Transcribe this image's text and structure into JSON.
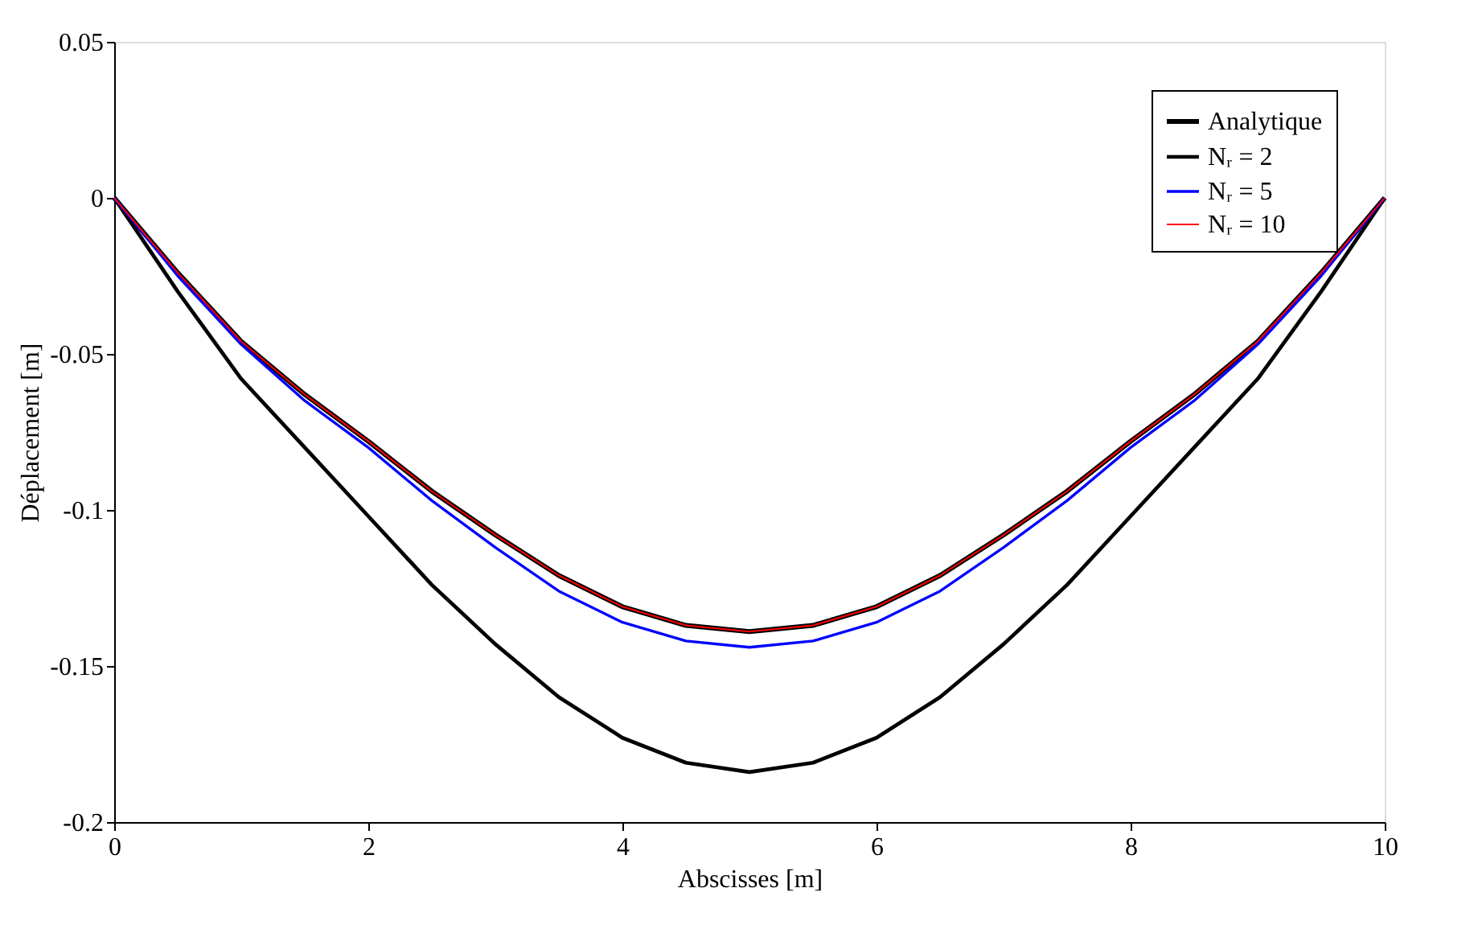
{
  "chart_data": {
    "type": "line",
    "xlabel": "Abscisses [m]",
    "ylabel": "Déplacement [m]",
    "x": [
      0,
      0.5,
      1,
      1.5,
      2,
      2.5,
      3,
      3.5,
      4,
      4.5,
      5,
      5.5,
      6,
      6.5,
      7,
      7.5,
      8,
      8.5,
      9,
      9.5,
      10
    ],
    "series": [
      {
        "name": "Analytique",
        "color": "#000000",
        "values": [
          0,
          -0.024,
          -0.046,
          -0.063,
          -0.078,
          -0.094,
          -0.108,
          -0.121,
          -0.131,
          -0.137,
          -0.139,
          -0.137,
          -0.131,
          -0.121,
          -0.108,
          -0.094,
          -0.078,
          -0.063,
          -0.046,
          -0.024,
          0
        ]
      },
      {
        "name": "Nᵣ = 2",
        "color": "#000000",
        "values": [
          0,
          -0.03,
          -0.058,
          -0.08,
          -0.102,
          -0.124,
          -0.143,
          -0.16,
          -0.173,
          -0.181,
          -0.184,
          -0.181,
          -0.173,
          -0.16,
          -0.143,
          -0.124,
          -0.102,
          -0.08,
          -0.058,
          -0.03,
          0
        ]
      },
      {
        "name": "Nᵣ = 5",
        "color": "#0000ff",
        "values": [
          0,
          -0.025,
          -0.047,
          -0.065,
          -0.08,
          -0.097,
          -0.112,
          -0.126,
          -0.136,
          -0.142,
          -0.144,
          -0.142,
          -0.136,
          -0.126,
          -0.112,
          -0.097,
          -0.08,
          -0.065,
          -0.047,
          -0.025,
          0
        ]
      },
      {
        "name": "Nᵣ = 10",
        "color": "#ff0000",
        "values": [
          0,
          -0.024,
          -0.046,
          -0.063,
          -0.078,
          -0.094,
          -0.108,
          -0.121,
          -0.131,
          -0.137,
          -0.139,
          -0.137,
          -0.131,
          -0.121,
          -0.108,
          -0.094,
          -0.078,
          -0.063,
          -0.046,
          -0.024,
          0
        ]
      }
    ],
    "xlim": [
      0,
      10
    ],
    "xticks": [
      0,
      2,
      4,
      6,
      8,
      10
    ],
    "ylim": [
      -0.2,
      0.05
    ],
    "yticks": [
      0.05,
      0,
      -0.05,
      -0.1,
      -0.15,
      -0.2
    ],
    "grid": false,
    "legend": "top right",
    "marker": "none",
    "line_style": "solid"
  }
}
